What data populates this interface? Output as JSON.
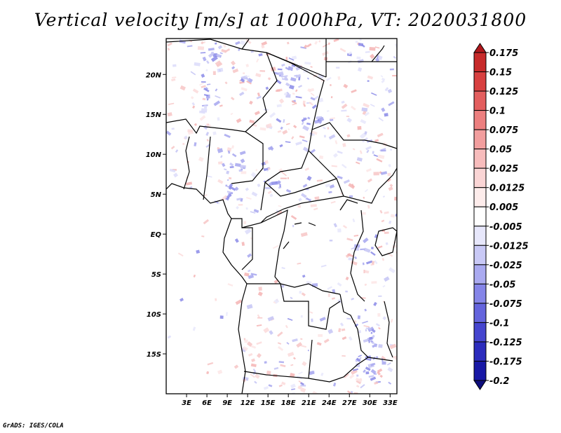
{
  "title": "Vertical velocity [m/s] at 1000hPa, VT: 2020031800",
  "credit": "GrADS: IGES/COLA",
  "map": {
    "variable": "Vertical velocity",
    "units": "m/s",
    "level": "1000hPa",
    "valid_time": "2020031800",
    "lon_range": [
      0,
      34
    ],
    "lat_range": [
      -20,
      24.5
    ],
    "lon_ticks": [
      {
        "value": 3,
        "label": "3E"
      },
      {
        "value": 6,
        "label": "6E"
      },
      {
        "value": 9,
        "label": "9E"
      },
      {
        "value": 12,
        "label": "12E"
      },
      {
        "value": 15,
        "label": "15E"
      },
      {
        "value": 18,
        "label": "18E"
      },
      {
        "value": 21,
        "label": "21E"
      },
      {
        "value": 24,
        "label": "24E"
      },
      {
        "value": 27,
        "label": "27E"
      },
      {
        "value": 30,
        "label": "30E"
      },
      {
        "value": 33,
        "label": "33E"
      }
    ],
    "lat_ticks": [
      {
        "value": 20,
        "label": "20N"
      },
      {
        "value": 15,
        "label": "15N"
      },
      {
        "value": 10,
        "label": "10N"
      },
      {
        "value": 5,
        "label": "5N"
      },
      {
        "value": 0,
        "label": "EQ"
      },
      {
        "value": -5,
        "label": "5S"
      },
      {
        "value": -10,
        "label": "10S"
      },
      {
        "value": -15,
        "label": "15S"
      }
    ]
  },
  "colorbar": {
    "levels": [
      "0.175",
      "0.15",
      "0.125",
      "0.1",
      "0.075",
      "0.05",
      "0.025",
      "0.0125",
      "0.005",
      "-0.005",
      "-0.0125",
      "-0.025",
      "-0.05",
      "-0.075",
      "-0.1",
      "-0.125",
      "-0.175",
      "-0.2"
    ],
    "colors": [
      "#b0181c",
      "#c72a2a",
      "#d84040",
      "#e35e5e",
      "#ec7f7f",
      "#f29e9e",
      "#f7bcbc",
      "#fad5d5",
      "#fdeceb",
      "#ffffff",
      "#e7e7fb",
      "#c9c9f6",
      "#aaaaf0",
      "#8585e8",
      "#6464dd",
      "#4545cf",
      "#2c2cbd",
      "#1818a5",
      "#0d0d7c"
    ]
  }
}
